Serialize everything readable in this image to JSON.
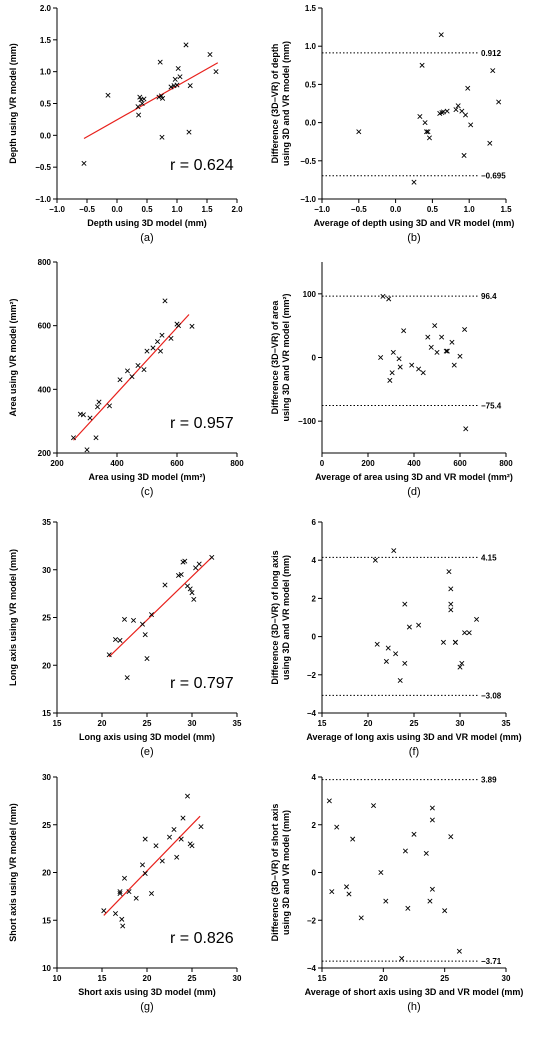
{
  "chart_data": [
    {
      "panel": "(a)",
      "type": "scatter",
      "xlabel": "Depth using 3D model (mm)",
      "ylabel": "Depth using VR model (mm)",
      "xlim": [
        -1.0,
        2.0
      ],
      "ylim": [
        -1.0,
        2.0
      ],
      "xticks": [
        "−1.0",
        "−0.5",
        "0.0",
        "0.5",
        "1.0",
        "1.5",
        "2.0"
      ],
      "yticks": [
        "−1.0",
        "−0.5",
        "0.0",
        "0.5",
        "1.0",
        "1.5",
        "2.0"
      ],
      "xtick_values": [
        -1.0,
        -0.5,
        0.0,
        0.5,
        1.0,
        1.5,
        2.0
      ],
      "ytick_values": [
        -1.0,
        -0.5,
        0.0,
        0.5,
        1.0,
        1.5,
        2.0
      ],
      "annotation": "r = 0.624",
      "regression": {
        "x": [
          -0.55,
          1.68
        ],
        "y": [
          -0.05,
          1.14
        ],
        "color": "#e8211c"
      },
      "points": [
        [
          -0.55,
          -0.44
        ],
        [
          -0.15,
          0.63
        ],
        [
          0.35,
          0.45
        ],
        [
          0.36,
          0.32
        ],
        [
          0.38,
          0.6
        ],
        [
          0.4,
          0.56
        ],
        [
          0.42,
          0.5
        ],
        [
          0.45,
          0.57
        ],
        [
          0.7,
          0.6
        ],
        [
          0.72,
          1.15
        ],
        [
          0.74,
          0.62
        ],
        [
          0.75,
          -0.03
        ],
        [
          0.76,
          0.58
        ],
        [
          0.9,
          0.76
        ],
        [
          0.95,
          0.78
        ],
        [
          0.97,
          0.88
        ],
        [
          1.0,
          0.79
        ],
        [
          1.02,
          1.05
        ],
        [
          1.05,
          0.92
        ],
        [
          1.15,
          1.42
        ],
        [
          1.2,
          0.05
        ],
        [
          1.22,
          0.78
        ],
        [
          1.55,
          1.27
        ],
        [
          1.65,
          1.0
        ]
      ]
    },
    {
      "panel": "(b)",
      "type": "scatter",
      "xlabel": "Average of depth using 3D and VR model (mm)",
      "ylabel": "Difference (3D−VR) of depth using 3D and VR model (mm)",
      "xlim": [
        -1.0,
        1.5
      ],
      "ylim": [
        -1.0,
        1.5
      ],
      "xticks": [
        "−1.0",
        "−0.5",
        "0.0",
        "0.5",
        "1.0",
        "1.5"
      ],
      "yticks": [
        "−1.0",
        "−0.5",
        "0.0",
        "0.5",
        "1.0",
        "1.5"
      ],
      "xtick_values": [
        -1.0,
        -0.5,
        0.0,
        0.5,
        1.0,
        1.5
      ],
      "ytick_values": [
        -1.0,
        -0.5,
        0.0,
        0.5,
        1.0,
        1.5
      ],
      "limits_of_agreement": [
        {
          "value": 0.912,
          "label": "0.912"
        },
        {
          "value": -0.695,
          "label": "−0.695"
        }
      ],
      "points": [
        [
          -0.5,
          -0.12
        ],
        [
          0.25,
          -0.78
        ],
        [
          0.33,
          0.08
        ],
        [
          0.36,
          0.75
        ],
        [
          0.4,
          0.0
        ],
        [
          0.42,
          -0.12
        ],
        [
          0.44,
          -0.12
        ],
        [
          0.46,
          -0.2
        ],
        [
          0.6,
          0.12
        ],
        [
          0.62,
          1.15
        ],
        [
          0.63,
          0.13
        ],
        [
          0.65,
          0.14
        ],
        [
          0.7,
          0.15
        ],
        [
          0.82,
          0.17
        ],
        [
          0.85,
          0.22
        ],
        [
          0.9,
          0.15
        ],
        [
          0.93,
          -0.43
        ],
        [
          0.95,
          0.1
        ],
        [
          0.98,
          0.45
        ],
        [
          1.02,
          -0.03
        ],
        [
          1.28,
          -0.27
        ],
        [
          1.32,
          0.68
        ],
        [
          1.4,
          0.27
        ]
      ]
    },
    {
      "panel": "(c)",
      "type": "scatter",
      "xlabel": "Area using 3D model (mm²)",
      "ylabel": "Area using VR model (mm²)",
      "xlim": [
        200,
        800
      ],
      "ylim": [
        200,
        800
      ],
      "xticks": [
        "200",
        "400",
        "600",
        "800"
      ],
      "yticks": [
        "200",
        "400",
        "600",
        "800"
      ],
      "xtick_values": [
        200,
        400,
        600,
        800
      ],
      "ytick_values": [
        200,
        400,
        600,
        800
      ],
      "annotation": "r = 0.957",
      "regression": {
        "x": [
          255,
          640
        ],
        "y": [
          240,
          635
        ],
        "color": "#e8211c"
      },
      "points": [
        [
          255,
          248
        ],
        [
          278,
          322
        ],
        [
          288,
          320
        ],
        [
          300,
          210
        ],
        [
          310,
          310
        ],
        [
          330,
          248
        ],
        [
          335,
          345
        ],
        [
          340,
          360
        ],
        [
          375,
          348
        ],
        [
          410,
          430
        ],
        [
          435,
          458
        ],
        [
          450,
          440
        ],
        [
          470,
          475
        ],
        [
          490,
          462
        ],
        [
          500,
          520
        ],
        [
          520,
          530
        ],
        [
          535,
          550
        ],
        [
          545,
          520
        ],
        [
          550,
          570
        ],
        [
          560,
          678
        ],
        [
          580,
          560
        ],
        [
          600,
          605
        ],
        [
          605,
          600
        ],
        [
          650,
          598
        ]
      ]
    },
    {
      "panel": "(d)",
      "type": "scatter",
      "xlabel": "Average of area using 3D and VR model (mm²)",
      "ylabel": "Difference (3D−VR) of area using 3D and VR model (mm²)",
      "xlim": [
        0,
        800
      ],
      "ylim": [
        -150,
        150
      ],
      "xticks": [
        "0",
        "200",
        "400",
        "600",
        "800"
      ],
      "yticks": [
        "−100",
        "0",
        "100"
      ],
      "xtick_values": [
        0,
        200,
        400,
        600,
        800
      ],
      "ytick_values": [
        -100,
        0,
        100
      ],
      "limits_of_agreement": [
        {
          "value": 96.4,
          "label": "96.4"
        },
        {
          "value": -75.4,
          "label": "−75.4"
        }
      ],
      "points": [
        [
          255,
          0
        ],
        [
          265,
          96
        ],
        [
          290,
          92
        ],
        [
          295,
          -36
        ],
        [
          305,
          -24
        ],
        [
          310,
          8
        ],
        [
          335,
          -2
        ],
        [
          340,
          -15
        ],
        [
          355,
          42
        ],
        [
          390,
          -12
        ],
        [
          420,
          -18
        ],
        [
          440,
          -24
        ],
        [
          460,
          32
        ],
        [
          475,
          16
        ],
        [
          490,
          50
        ],
        [
          500,
          8
        ],
        [
          520,
          32
        ],
        [
          540,
          10
        ],
        [
          545,
          10
        ],
        [
          565,
          24
        ],
        [
          575,
          -12
        ],
        [
          600,
          2
        ],
        [
          620,
          44
        ],
        [
          625,
          -112
        ]
      ]
    },
    {
      "panel": "(e)",
      "type": "scatter",
      "xlabel": "Long axis using 3D model (mm)",
      "ylabel": "Long axis using VR model (mm)",
      "xlim": [
        15,
        35
      ],
      "ylim": [
        15,
        35
      ],
      "xticks": [
        "15",
        "20",
        "25",
        "30",
        "35"
      ],
      "yticks": [
        "15",
        "20",
        "25",
        "30",
        "35"
      ],
      "xtick_values": [
        15,
        20,
        25,
        30,
        35
      ],
      "ytick_values": [
        15,
        20,
        25,
        30,
        35
      ],
      "annotation": "r = 0.797",
      "regression": {
        "x": [
          20.8,
          32.2
        ],
        "y": [
          20.9,
          31.3
        ],
        "color": "#e8211c"
      },
      "points": [
        [
          20.8,
          21.1
        ],
        [
          21.5,
          22.7
        ],
        [
          22.0,
          22.6
        ],
        [
          22.5,
          24.8
        ],
        [
          22.8,
          18.7
        ],
        [
          23.5,
          24.7
        ],
        [
          24.5,
          24.3
        ],
        [
          24.8,
          23.2
        ],
        [
          25.0,
          20.7
        ],
        [
          25.5,
          25.3
        ],
        [
          27.0,
          28.4
        ],
        [
          28.5,
          29.4
        ],
        [
          28.8,
          29.5
        ],
        [
          29.0,
          30.8
        ],
        [
          29.2,
          30.9
        ],
        [
          29.5,
          28.3
        ],
        [
          29.8,
          28.0
        ],
        [
          30.0,
          27.6
        ],
        [
          30.2,
          26.9
        ],
        [
          30.4,
          30.2
        ],
        [
          30.8,
          30.6
        ],
        [
          32.2,
          31.3
        ]
      ]
    },
    {
      "panel": "(f)",
      "type": "scatter",
      "xlabel": "Average of long axis using 3D and VR model (mm)",
      "ylabel": "Difference (3D−VR) of long axis using 3D and VR model (mm)",
      "xlim": [
        15,
        35
      ],
      "ylim": [
        -4,
        6
      ],
      "xticks": [
        "15",
        "20",
        "25",
        "30",
        "35"
      ],
      "yticks": [
        "−4",
        "−2",
        "0",
        "2",
        "4",
        "6"
      ],
      "xtick_values": [
        15,
        20,
        25,
        30,
        35
      ],
      "ytick_values": [
        -4,
        -2,
        0,
        2,
        4,
        6
      ],
      "limits_of_agreement": [
        {
          "value": 4.15,
          "label": "4.15"
        },
        {
          "value": -3.08,
          "label": "−3.08"
        }
      ],
      "points": [
        [
          20.8,
          4.0
        ],
        [
          21.0,
          -0.4
        ],
        [
          22.0,
          -1.3
        ],
        [
          22.2,
          -0.6
        ],
        [
          22.8,
          4.5
        ],
        [
          23.0,
          -0.9
        ],
        [
          23.5,
          -2.3
        ],
        [
          24.0,
          1.7
        ],
        [
          24.0,
          -1.4
        ],
        [
          24.5,
          0.5
        ],
        [
          25.5,
          0.6
        ],
        [
          28.2,
          -0.3
        ],
        [
          28.8,
          3.4
        ],
        [
          29.0,
          2.5
        ],
        [
          29.0,
          1.7
        ],
        [
          29.0,
          1.4
        ],
        [
          29.5,
          -0.3
        ],
        [
          29.5,
          -0.3
        ],
        [
          30.0,
          -1.6
        ],
        [
          30.2,
          -1.4
        ],
        [
          30.5,
          0.2
        ],
        [
          31.0,
          0.2
        ],
        [
          31.8,
          0.9
        ]
      ]
    },
    {
      "panel": "(g)",
      "type": "scatter",
      "xlabel": "Short axis using 3D model (mm)",
      "ylabel": "Short axis using VR model (mm)",
      "xlim": [
        10,
        30
      ],
      "ylim": [
        10,
        30
      ],
      "xticks": [
        "10",
        "15",
        "20",
        "25",
        "30"
      ],
      "yticks": [
        "10",
        "15",
        "20",
        "25",
        "30"
      ],
      "xtick_values": [
        10,
        15,
        20,
        25,
        30
      ],
      "ytick_values": [
        10,
        15,
        20,
        25,
        30
      ],
      "annotation": "r = 0.826",
      "regression": {
        "x": [
          15.2,
          25.9
        ],
        "y": [
          15.5,
          25.9
        ],
        "color": "#e8211c"
      },
      "points": [
        [
          15.2,
          16.0
        ],
        [
          16.5,
          15.7
        ],
        [
          17.0,
          17.8
        ],
        [
          17.0,
          18.0
        ],
        [
          17.2,
          15.1
        ],
        [
          17.3,
          14.4
        ],
        [
          17.5,
          19.4
        ],
        [
          18.0,
          18.0
        ],
        [
          18.8,
          17.3
        ],
        [
          19.5,
          20.8
        ],
        [
          19.8,
          19.9
        ],
        [
          19.8,
          23.5
        ],
        [
          20.5,
          17.8
        ],
        [
          21.0,
          22.8
        ],
        [
          21.7,
          21.2
        ],
        [
          22.5,
          23.7
        ],
        [
          23.0,
          24.5
        ],
        [
          23.3,
          21.6
        ],
        [
          23.8,
          23.5
        ],
        [
          24.0,
          25.7
        ],
        [
          24.5,
          28.0
        ],
        [
          24.8,
          23.0
        ],
        [
          25.0,
          22.8
        ],
        [
          26.0,
          24.8
        ]
      ]
    },
    {
      "panel": "(h)",
      "type": "scatter",
      "xlabel": "Average of short axis using 3D and VR model (mm)",
      "ylabel": "Difference (3D−VR) of short axis using 3D and VR model (mm)",
      "xlim": [
        15,
        30
      ],
      "ylim": [
        -4,
        4
      ],
      "xticks": [
        "15",
        "20",
        "25",
        "30"
      ],
      "yticks": [
        "−4",
        "−2",
        "0",
        "2",
        "4"
      ],
      "xtick_values": [
        15,
        20,
        25,
        30
      ],
      "ytick_values": [
        -4,
        -2,
        0,
        2,
        4
      ],
      "limits_of_agreement": [
        {
          "value": 3.89,
          "label": "3.89"
        },
        {
          "value": -3.71,
          "label": "−3.71"
        }
      ],
      "points": [
        [
          15.6,
          3.0
        ],
        [
          15.8,
          -0.8
        ],
        [
          16.2,
          1.9
        ],
        [
          17.0,
          -0.6
        ],
        [
          17.2,
          -0.9
        ],
        [
          17.5,
          1.4
        ],
        [
          18.2,
          -1.9
        ],
        [
          19.2,
          2.8
        ],
        [
          19.8,
          0.0
        ],
        [
          20.2,
          -1.2
        ],
        [
          21.5,
          -3.6
        ],
        [
          21.8,
          0.9
        ],
        [
          22.0,
          -1.5
        ],
        [
          22.5,
          1.6
        ],
        [
          23.5,
          0.8
        ],
        [
          23.8,
          -1.2
        ],
        [
          24.0,
          -0.7
        ],
        [
          24.0,
          2.7
        ],
        [
          24.0,
          2.2
        ],
        [
          25.0,
          -1.6
        ],
        [
          25.5,
          1.5
        ],
        [
          26.2,
          -3.3
        ]
      ]
    }
  ]
}
